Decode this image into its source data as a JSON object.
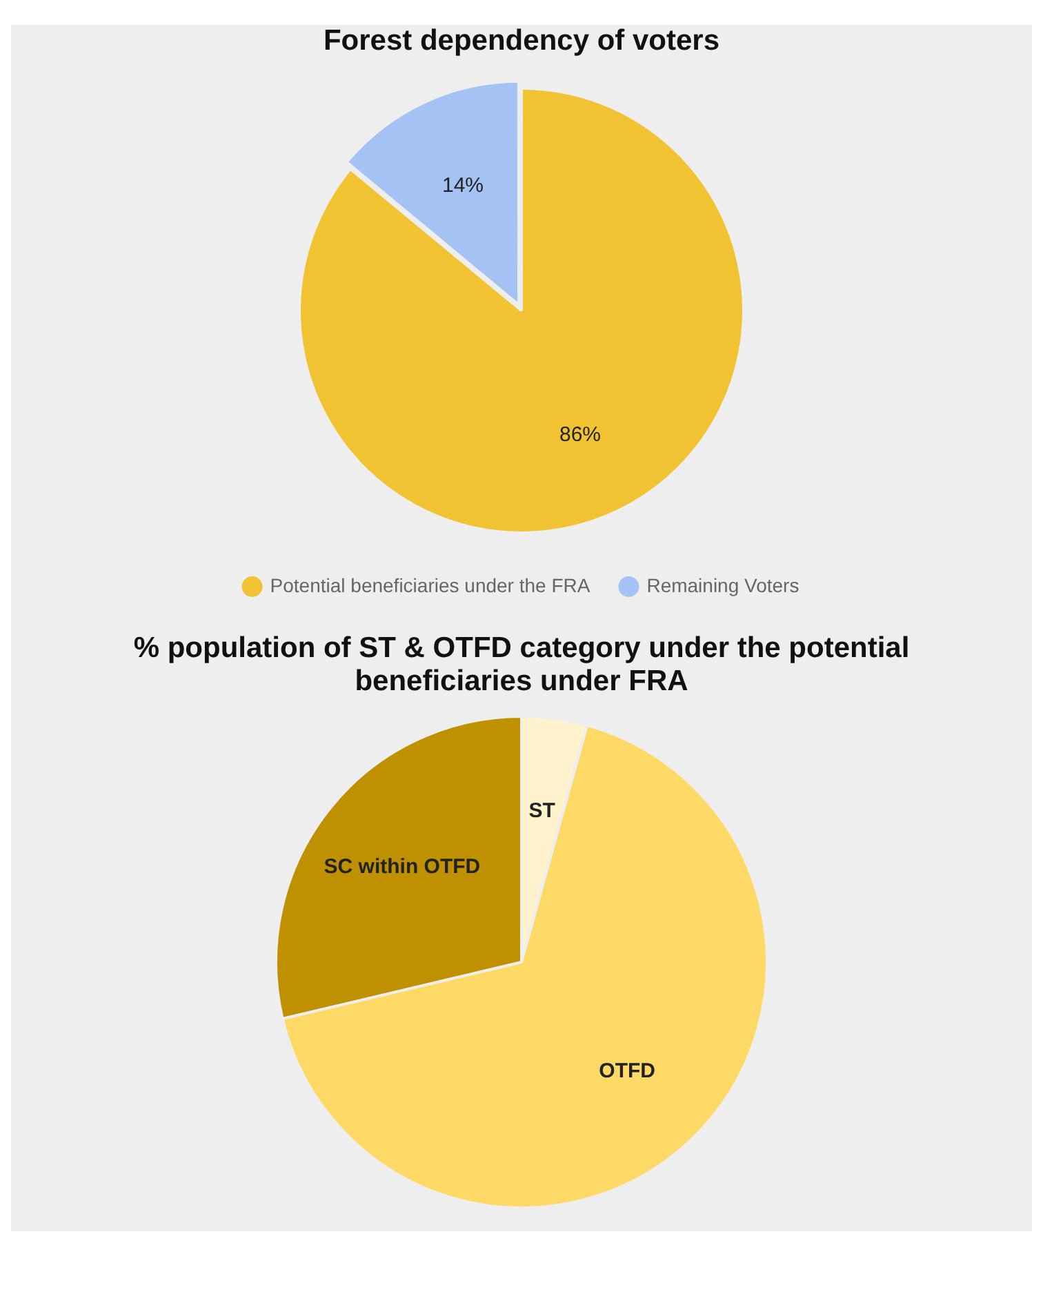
{
  "chart_data": [
    {
      "type": "pie",
      "title": "Forest dependency of voters",
      "categories": [
        "Potential beneficiaries under the FRA",
        "Remaining Voters"
      ],
      "values": [
        86,
        14
      ],
      "colors": [
        "#f1c232",
        "#a4c2f4"
      ],
      "value_labels": [
        "86%",
        "14%"
      ],
      "legend": "bottom"
    },
    {
      "type": "pie",
      "title": "% population of ST & OTFD category under the potential beneficiaries under FRA",
      "categories": [
        "ST",
        "OTFD",
        "SC within OTFD"
      ],
      "values": [
        4.3,
        67,
        28.7
      ],
      "colors": [
        "#fff2cc",
        "#ffd966",
        "#bf9000"
      ],
      "legend": false
    }
  ]
}
